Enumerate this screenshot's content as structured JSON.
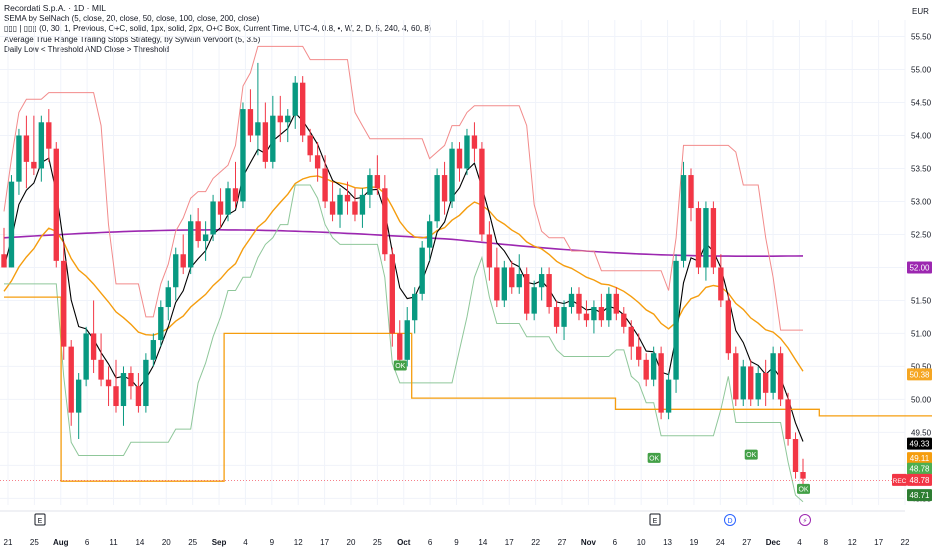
{
  "header": {
    "symbol_line": "Recordati S.p.A. · 1D · MIL",
    "currency": "EUR",
    "indicators": [
      "SEMA by SelNach (5, close, 20, close, 50, close, 100, close, 200, close)",
      "▯▯▯ | ▯▯▯ (0, 30, 1, Previous, O+C, solid, 1px, solid, 2px, O+C Box, Current Time, UTC-4, 0.8, •, W, 2, D, 5, 240, 4, 60, 8)",
      "Average True Range Trailing Stops Strategy, by Sylvain Vervoort (5, 3.5)",
      "Daily Low < Threshold AND Close > Threshold"
    ]
  },
  "chart_data": {
    "type": "candlestick",
    "y_axis": {
      "range": [
        48.4,
        55.75
      ],
      "ticks": [
        "48.50",
        "49.00",
        "49.50",
        "50.00",
        "50.50",
        "51.00",
        "51.50",
        "52.00",
        "52.50",
        "53.00",
        "53.50",
        "54.00",
        "54.50",
        "55.00",
        "55.50"
      ]
    },
    "x_axis": {
      "ticks": [
        "21",
        "25",
        "Aug",
        "6",
        "11",
        "14",
        "20",
        "25",
        "Sep",
        "4",
        "9",
        "12",
        "17",
        "20",
        "25",
        "Oct",
        "6",
        "9",
        "14",
        "17",
        "22",
        "27",
        "Nov",
        "6",
        "10",
        "13",
        "19",
        "24",
        "27",
        "Dec",
        "4",
        "8",
        "12",
        "17",
        "22"
      ],
      "markers": [
        "E",
        "E",
        "D",
        "⚡"
      ]
    },
    "candles": [
      [
        52.2,
        52.6,
        52.0,
        52.0
      ],
      [
        52.0,
        53.4,
        52.0,
        53.3
      ],
      [
        53.3,
        54.1,
        53.1,
        54.0
      ],
      [
        54.0,
        54.3,
        53.2,
        53.6
      ],
      [
        53.6,
        54.3,
        53.4,
        53.5
      ],
      [
        53.5,
        54.3,
        53.3,
        54.2
      ],
      [
        54.2,
        54.4,
        53.6,
        53.8
      ],
      [
        53.8,
        53.9,
        52.0,
        52.1
      ],
      [
        52.1,
        52.4,
        50.6,
        50.8
      ],
      [
        50.8,
        50.9,
        49.6,
        49.8
      ],
      [
        49.8,
        50.4,
        49.4,
        50.3
      ],
      [
        50.3,
        51.1,
        50.2,
        51.0
      ],
      [
        51.0,
        51.5,
        50.4,
        50.6
      ],
      [
        50.6,
        51.0,
        50.2,
        50.3
      ],
      [
        50.3,
        50.5,
        49.9,
        50.2
      ],
      [
        50.2,
        50.6,
        49.8,
        49.9
      ],
      [
        49.9,
        50.5,
        49.6,
        50.4
      ],
      [
        50.4,
        50.5,
        50.0,
        50.2
      ],
      [
        50.2,
        50.4,
        49.8,
        49.9
      ],
      [
        49.9,
        50.7,
        49.8,
        50.6
      ],
      [
        50.6,
        51.0,
        50.5,
        50.9
      ],
      [
        50.9,
        51.5,
        50.8,
        51.4
      ],
      [
        51.4,
        51.8,
        51.2,
        51.7
      ],
      [
        51.7,
        52.3,
        51.5,
        52.2
      ],
      [
        52.2,
        52.5,
        51.9,
        52.0
      ],
      [
        52.0,
        52.8,
        51.9,
        52.7
      ],
      [
        52.7,
        52.9,
        52.3,
        52.4
      ],
      [
        52.4,
        52.7,
        52.1,
        52.5
      ],
      [
        52.5,
        53.1,
        52.4,
        53.0
      ],
      [
        53.0,
        53.2,
        52.6,
        52.8
      ],
      [
        52.8,
        53.3,
        52.7,
        53.2
      ],
      [
        53.2,
        53.6,
        52.9,
        53.0
      ],
      [
        53.0,
        54.5,
        52.9,
        54.4
      ],
      [
        54.4,
        54.7,
        53.9,
        54.0
      ],
      [
        54.0,
        55.1,
        53.7,
        54.2
      ],
      [
        54.2,
        54.5,
        53.5,
        53.6
      ],
      [
        53.6,
        54.6,
        53.5,
        54.3
      ],
      [
        54.3,
        54.6,
        53.9,
        54.2
      ],
      [
        54.2,
        54.4,
        53.9,
        54.3
      ],
      [
        54.3,
        54.9,
        54.1,
        54.8
      ],
      [
        54.8,
        54.9,
        53.9,
        54.0
      ],
      [
        54.0,
        54.1,
        53.6,
        53.7
      ],
      [
        53.7,
        53.9,
        53.3,
        53.5
      ],
      [
        53.5,
        53.7,
        52.9,
        53.0
      ],
      [
        53.0,
        53.3,
        52.7,
        52.8
      ],
      [
        52.8,
        53.2,
        52.6,
        53.1
      ],
      [
        53.1,
        53.3,
        52.8,
        53.0
      ],
      [
        53.0,
        53.2,
        52.7,
        52.8
      ],
      [
        52.8,
        53.2,
        52.6,
        53.1
      ],
      [
        53.1,
        53.5,
        52.9,
        53.4
      ],
      [
        53.4,
        53.7,
        53.1,
        53.2
      ],
      [
        53.2,
        53.4,
        52.1,
        52.2
      ],
      [
        52.2,
        52.3,
        50.8,
        51.0
      ],
      [
        51.0,
        51.2,
        50.5,
        50.6
      ],
      [
        50.6,
        51.4,
        50.5,
        51.2
      ],
      [
        51.2,
        51.7,
        51.0,
        51.6
      ],
      [
        51.6,
        52.4,
        51.5,
        52.3
      ],
      [
        52.3,
        52.8,
        52.1,
        52.7
      ],
      [
        52.7,
        53.5,
        52.6,
        53.4
      ],
      [
        53.4,
        53.6,
        52.8,
        53.0
      ],
      [
        53.0,
        53.9,
        52.9,
        53.8
      ],
      [
        53.8,
        53.9,
        53.3,
        53.5
      ],
      [
        53.5,
        54.1,
        53.4,
        54.0
      ],
      [
        54.0,
        54.2,
        53.6,
        53.8
      ],
      [
        53.8,
        53.9,
        52.4,
        52.5
      ],
      [
        52.5,
        52.7,
        51.8,
        52.0
      ],
      [
        52.0,
        52.3,
        51.4,
        51.5
      ],
      [
        51.5,
        52.1,
        51.4,
        52.0
      ],
      [
        52.0,
        52.1,
        51.6,
        51.7
      ],
      [
        51.7,
        52.2,
        51.6,
        51.9
      ],
      [
        51.9,
        52.0,
        51.2,
        51.3
      ],
      [
        51.3,
        51.8,
        51.2,
        51.7
      ],
      [
        51.7,
        52.0,
        51.5,
        51.9
      ],
      [
        51.9,
        52.0,
        51.3,
        51.4
      ],
      [
        51.4,
        51.5,
        51.0,
        51.1
      ],
      [
        51.1,
        51.5,
        50.9,
        51.4
      ],
      [
        51.4,
        51.7,
        51.3,
        51.6
      ],
      [
        51.6,
        51.7,
        51.2,
        51.3
      ],
      [
        51.3,
        51.5,
        51.1,
        51.2
      ],
      [
        51.2,
        51.5,
        51.0,
        51.4
      ],
      [
        51.4,
        51.6,
        51.1,
        51.2
      ],
      [
        51.2,
        51.7,
        51.1,
        51.6
      ],
      [
        51.6,
        51.7,
        51.2,
        51.3
      ],
      [
        51.3,
        51.4,
        51.0,
        51.1
      ],
      [
        51.1,
        51.2,
        50.6,
        50.8
      ],
      [
        50.8,
        51.0,
        50.5,
        50.6
      ],
      [
        50.6,
        50.7,
        50.2,
        50.3
      ],
      [
        50.3,
        50.8,
        50.2,
        50.7
      ],
      [
        50.7,
        50.8,
        49.7,
        49.8
      ],
      [
        49.8,
        50.4,
        49.7,
        50.3
      ],
      [
        50.3,
        52.2,
        50.1,
        52.1
      ],
      [
        52.1,
        53.6,
        52.0,
        53.4
      ],
      [
        53.4,
        53.5,
        52.7,
        52.9
      ],
      [
        52.9,
        53.0,
        51.9,
        52.0
      ],
      [
        52.0,
        53.0,
        51.8,
        52.9
      ],
      [
        52.9,
        53.0,
        51.9,
        52.0
      ],
      [
        52.0,
        52.2,
        51.4,
        51.5
      ],
      [
        51.5,
        51.6,
        50.6,
        50.7
      ],
      [
        50.7,
        50.8,
        49.9,
        50.0
      ],
      [
        50.0,
        50.6,
        49.9,
        50.5
      ],
      [
        50.5,
        50.6,
        49.9,
        50.0
      ],
      [
        50.0,
        50.5,
        49.9,
        50.4
      ],
      [
        50.4,
        50.6,
        49.9,
        50.1
      ],
      [
        50.1,
        50.8,
        50.0,
        50.7
      ],
      [
        50.7,
        50.8,
        49.9,
        50.0
      ],
      [
        50.0,
        50.1,
        49.3,
        49.4
      ],
      [
        49.4,
        49.5,
        48.8,
        48.9
      ],
      [
        48.9,
        49.1,
        48.7,
        48.8
      ]
    ],
    "series": [
      {
        "name": "EMA 5",
        "color": "#000000"
      },
      {
        "name": "EMA 20",
        "color": "#f59d0e"
      },
      {
        "name": "EMA 200",
        "color": "#9c27b0"
      },
      {
        "name": "ATR trailing stop (resistance)",
        "color": "#f28b8b"
      },
      {
        "name": "ATR trailing stop (support)",
        "color": "#8fc79a"
      }
    ],
    "signals": [
      "OK",
      "OK",
      "OK",
      "OK"
    ],
    "price_labels": [
      {
        "value": "52.00",
        "color": "#9c27b0"
      },
      {
        "value": "50.38",
        "color": "#f5a623"
      },
      {
        "value": "49.33",
        "color": "#000000"
      },
      {
        "value": "49.11",
        "color": "#f59d0e"
      },
      {
        "value": "48.78",
        "color": "#4caf50"
      },
      {
        "value": "48.78",
        "color": "#f23645"
      },
      {
        "value": "48.71",
        "color": "#2e7d32"
      }
    ],
    "rec_label": "REC"
  }
}
